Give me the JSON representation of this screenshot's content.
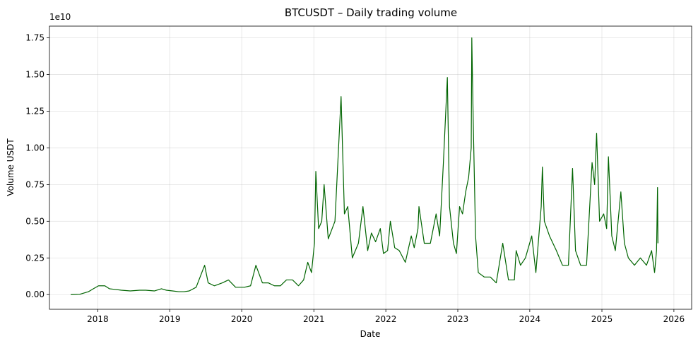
{
  "chart_data": {
    "type": "line",
    "title": "BTCUSDT – Daily trading volume",
    "xlabel": "Date",
    "ylabel": "Volume USDT",
    "y_offset_label": "1e10",
    "xlim": [
      "2017-05-01",
      "2026-04-01"
    ],
    "ylim": [
      -0.1,
      1.83
    ],
    "grid": true,
    "x_ticks": [
      {
        "date": "2018-01-01",
        "label": "2018"
      },
      {
        "date": "2019-01-01",
        "label": "2019"
      },
      {
        "date": "2020-01-01",
        "label": "2020"
      },
      {
        "date": "2021-01-01",
        "label": "2021"
      },
      {
        "date": "2022-01-01",
        "label": "2022"
      },
      {
        "date": "2023-01-01",
        "label": "2023"
      },
      {
        "date": "2024-01-01",
        "label": "2024"
      },
      {
        "date": "2025-01-01",
        "label": "2025"
      },
      {
        "date": "2026-01-01",
        "label": "2026"
      }
    ],
    "y_ticks": [
      {
        "value": 0.0,
        "label": "0.00"
      },
      {
        "value": 0.25,
        "label": "0.25"
      },
      {
        "value": 0.5,
        "label": "0.50"
      },
      {
        "value": 0.75,
        "label": "0.75"
      },
      {
        "value": 1.0,
        "label": "1.00"
      },
      {
        "value": 1.25,
        "label": "1.25"
      },
      {
        "value": 1.5,
        "label": "1.50"
      },
      {
        "value": 1.75,
        "label": "1.75"
      }
    ],
    "series": [
      {
        "color": "#006400",
        "x": [
          "2017-08-17",
          "2017-10-01",
          "2017-11-15",
          "2017-12-10",
          "2018-01-05",
          "2018-01-20",
          "2018-02-06",
          "2018-03-01",
          "2018-04-01",
          "2018-05-01",
          "2018-06-15",
          "2018-08-01",
          "2018-09-01",
          "2018-10-15",
          "2018-11-20",
          "2018-12-15",
          "2019-01-15",
          "2019-02-15",
          "2019-03-15",
          "2019-04-10",
          "2019-05-15",
          "2019-06-27",
          "2019-07-15",
          "2019-08-15",
          "2019-09-25",
          "2019-10-26",
          "2019-12-01",
          "2020-01-15",
          "2020-02-15",
          "2020-03-13",
          "2020-04-15",
          "2020-05-15",
          "2020-06-15",
          "2020-07-15",
          "2020-08-15",
          "2020-09-15",
          "2020-10-15",
          "2020-11-10",
          "2020-12-01",
          "2020-12-20",
          "2021-01-04",
          "2021-01-11",
          "2021-01-25",
          "2021-02-10",
          "2021-02-22",
          "2021-03-15",
          "2021-04-18",
          "2021-05-19",
          "2021-06-05",
          "2021-06-22",
          "2021-07-15",
          "2021-08-15",
          "2021-09-07",
          "2021-10-01",
          "2021-10-20",
          "2021-11-10",
          "2021-12-04",
          "2021-12-20",
          "2022-01-10",
          "2022-01-24",
          "2022-02-15",
          "2022-03-10",
          "2022-04-10",
          "2022-05-10",
          "2022-05-25",
          "2022-06-13",
          "2022-06-18",
          "2022-07-15",
          "2022-08-15",
          "2022-09-13",
          "2022-10-01",
          "2022-10-20",
          "2022-11-09",
          "2022-11-20",
          "2022-12-10",
          "2022-12-25",
          "2023-01-10",
          "2023-01-25",
          "2023-02-10",
          "2023-02-25",
          "2023-03-10",
          "2023-03-13",
          "2023-03-20",
          "2023-04-01",
          "2023-04-15",
          "2023-05-15",
          "2023-06-15",
          "2023-07-15",
          "2023-08-17",
          "2023-09-15",
          "2023-10-15",
          "2023-10-24",
          "2023-11-15",
          "2023-12-10",
          "2024-01-11",
          "2024-02-01",
          "2024-02-28",
          "2024-03-05",
          "2024-03-15",
          "2024-04-10",
          "2024-05-15",
          "2024-06-15",
          "2024-07-15",
          "2024-08-05",
          "2024-08-20",
          "2024-09-15",
          "2024-10-15",
          "2024-11-12",
          "2024-11-25",
          "2024-12-05",
          "2024-12-20",
          "2025-01-10",
          "2025-01-25",
          "2025-02-03",
          "2025-02-20",
          "2025-03-10",
          "2025-04-07",
          "2025-04-25",
          "2025-05-15",
          "2025-06-15",
          "2025-07-15",
          "2025-08-15",
          "2025-09-10",
          "2025-09-25",
          "2025-10-05",
          "2025-10-10",
          "2025-10-12"
        ],
        "values": [
          0.0,
          0.002,
          0.02,
          0.04,
          0.06,
          0.06,
          0.06,
          0.04,
          0.035,
          0.03,
          0.025,
          0.03,
          0.03,
          0.025,
          0.04,
          0.03,
          0.025,
          0.02,
          0.02,
          0.025,
          0.05,
          0.2,
          0.08,
          0.06,
          0.08,
          0.1,
          0.05,
          0.05,
          0.06,
          0.2,
          0.08,
          0.08,
          0.06,
          0.06,
          0.1,
          0.1,
          0.06,
          0.1,
          0.22,
          0.15,
          0.35,
          0.84,
          0.45,
          0.5,
          0.75,
          0.38,
          0.5,
          1.35,
          0.55,
          0.6,
          0.25,
          0.35,
          0.6,
          0.3,
          0.42,
          0.36,
          0.45,
          0.28,
          0.3,
          0.5,
          0.32,
          0.3,
          0.22,
          0.4,
          0.32,
          0.45,
          0.6,
          0.35,
          0.35,
          0.55,
          0.4,
          0.9,
          1.48,
          0.6,
          0.35,
          0.28,
          0.6,
          0.55,
          0.7,
          0.8,
          1.0,
          1.75,
          1.2,
          0.4,
          0.15,
          0.12,
          0.12,
          0.08,
          0.35,
          0.1,
          0.1,
          0.3,
          0.2,
          0.25,
          0.4,
          0.15,
          0.6,
          0.87,
          0.5,
          0.4,
          0.3,
          0.2,
          0.2,
          0.86,
          0.3,
          0.2,
          0.2,
          0.9,
          0.75,
          1.1,
          0.5,
          0.55,
          0.45,
          0.94,
          0.4,
          0.3,
          0.7,
          0.35,
          0.25,
          0.2,
          0.25,
          0.2,
          0.3,
          0.15,
          0.3,
          0.73,
          0.35
        ]
      }
    ]
  }
}
